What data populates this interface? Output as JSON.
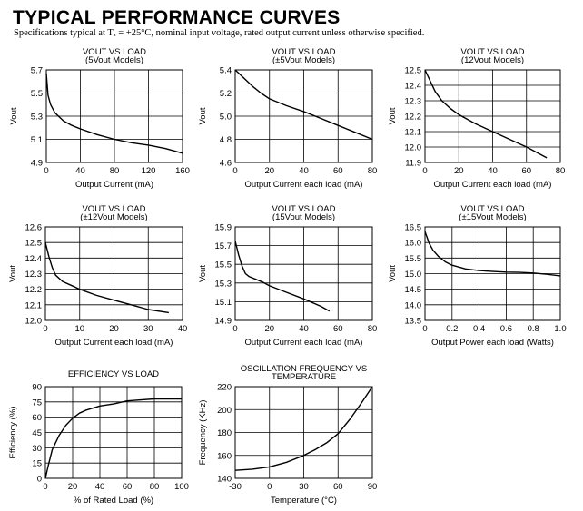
{
  "page": {
    "title": "TYPICAL PERFORMANCE CURVES",
    "subtitle": "Specifications typical at Tₐ = +25°C, nominal input voltage, rated output current unless otherwise specified."
  },
  "chart_data": [
    {
      "type": "line",
      "title": "VOUT VS LOAD",
      "subtitle": "(5Vout Models)",
      "xlabel": "Output Current (mA)",
      "ylabel": "Vout",
      "xlim": [
        0,
        160
      ],
      "ylim": [
        4.9,
        5.7
      ],
      "xticks": [
        0,
        40,
        80,
        120,
        160
      ],
      "yticks": [
        4.9,
        5.1,
        5.3,
        5.5,
        5.7
      ],
      "xtick_labels": [
        "0",
        "40",
        "80",
        "120",
        "160"
      ],
      "ytick_labels": [
        "4.9",
        "5.1",
        "5.3",
        "5.5",
        "5.7"
      ],
      "series": [
        {
          "name": "Vout",
          "x": [
            0,
            2,
            5,
            10,
            20,
            30,
            40,
            60,
            80,
            100,
            120,
            140,
            160
          ],
          "y": [
            5.67,
            5.48,
            5.4,
            5.33,
            5.26,
            5.22,
            5.19,
            5.14,
            5.1,
            5.07,
            5.05,
            5.02,
            4.98
          ]
        }
      ]
    },
    {
      "type": "line",
      "title": "VOUT VS LOAD",
      "subtitle": "(±5Vout Models)",
      "xlabel": "Output Current each load (mA)",
      "ylabel": "Vout",
      "xlim": [
        0,
        80
      ],
      "ylim": [
        4.6,
        5.4
      ],
      "xticks": [
        0,
        20,
        40,
        60,
        80
      ],
      "yticks": [
        4.6,
        4.8,
        5.0,
        5.2,
        5.4
      ],
      "xtick_labels": [
        "0",
        "20",
        "40",
        "60",
        "80"
      ],
      "ytick_labels": [
        "4.6",
        "4.8",
        "5.0",
        "5.2",
        "5.4"
      ],
      "series": [
        {
          "name": "Vout",
          "x": [
            0,
            5,
            10,
            15,
            20,
            30,
            40,
            50,
            60,
            70,
            80
          ],
          "y": [
            5.4,
            5.33,
            5.26,
            5.2,
            5.15,
            5.09,
            5.04,
            4.98,
            4.92,
            4.86,
            4.8
          ]
        }
      ]
    },
    {
      "type": "line",
      "title": "VOUT VS LOAD",
      "subtitle": "(12Vout Models)",
      "xlabel": "Output Current each load (mA)",
      "ylabel": "Vout",
      "xlim": [
        0,
        80
      ],
      "ylim": [
        11.9,
        12.5
      ],
      "xticks": [
        0,
        20,
        40,
        60,
        80
      ],
      "yticks": [
        11.9,
        12.0,
        12.1,
        12.2,
        12.3,
        12.4,
        12.5
      ],
      "xtick_labels": [
        "0",
        "20",
        "40",
        "60",
        "80"
      ],
      "ytick_labels": [
        "11.9",
        "12.0",
        "12.1",
        "12.2",
        "12.3",
        "12.4",
        "12.5"
      ],
      "series": [
        {
          "name": "Vout",
          "x": [
            0,
            3,
            6,
            10,
            15,
            20,
            30,
            40,
            50,
            60,
            72
          ],
          "y": [
            12.5,
            12.43,
            12.36,
            12.3,
            12.25,
            12.21,
            12.15,
            12.1,
            12.05,
            12.0,
            11.93
          ]
        }
      ]
    },
    {
      "type": "line",
      "title": "VOUT VS LOAD",
      "subtitle": "(±12Vout Models)",
      "xlabel": "Output Current each load (mA)",
      "ylabel": "Vout",
      "xlim": [
        0,
        40
      ],
      "ylim": [
        12.0,
        12.6
      ],
      "xticks": [
        0,
        10,
        20,
        30,
        40
      ],
      "yticks": [
        12.0,
        12.1,
        12.2,
        12.3,
        12.4,
        12.5,
        12.6
      ],
      "xtick_labels": [
        "0",
        "10",
        "20",
        "30",
        "40"
      ],
      "ytick_labels": [
        "12.0",
        "12.1",
        "12.2",
        "12.3",
        "12.4",
        "12.5",
        "12.6"
      ],
      "series": [
        {
          "name": "Vout",
          "x": [
            0,
            1,
            2,
            3,
            5,
            8,
            10,
            15,
            20,
            25,
            30,
            36
          ],
          "y": [
            12.5,
            12.41,
            12.34,
            12.29,
            12.25,
            12.22,
            12.2,
            12.16,
            12.13,
            12.1,
            12.07,
            12.05
          ]
        }
      ]
    },
    {
      "type": "line",
      "title": "VOUT VS LOAD",
      "subtitle": "(15Vout Models)",
      "xlabel": "Output Current each load (mA)",
      "ylabel": "Vout",
      "xlim": [
        0,
        80
      ],
      "ylim": [
        14.9,
        15.9
      ],
      "xticks": [
        0,
        20,
        40,
        60,
        80
      ],
      "yticks": [
        14.9,
        15.1,
        15.3,
        15.5,
        15.7,
        15.9
      ],
      "xtick_labels": [
        "0",
        "20",
        "40",
        "60",
        "80"
      ],
      "ytick_labels": [
        "14.9",
        "15.1",
        "15.3",
        "15.5",
        "15.7",
        "15.9"
      ],
      "series": [
        {
          "name": "Vout",
          "x": [
            0,
            2,
            4,
            6,
            8,
            12,
            16,
            20,
            30,
            40,
            50,
            55
          ],
          "y": [
            15.75,
            15.6,
            15.48,
            15.4,
            15.37,
            15.34,
            15.31,
            15.27,
            15.2,
            15.13,
            15.05,
            15.0
          ]
        }
      ]
    },
    {
      "type": "line",
      "title": "VOUT VS LOAD",
      "subtitle": "(±15Vout Models)",
      "xlabel": "Output Power each load (Watts)",
      "ylabel": "Vout",
      "xlim": [
        0,
        1.0
      ],
      "ylim": [
        13.5,
        16.5
      ],
      "xticks": [
        0,
        0.2,
        0.4,
        0.6,
        0.8,
        1.0
      ],
      "yticks": [
        13.5,
        14.0,
        14.5,
        15.0,
        15.5,
        16.0,
        16.5
      ],
      "xtick_labels": [
        "0",
        "0.2",
        "0.4",
        "0.6",
        "0.8",
        "1.0"
      ],
      "ytick_labels": [
        "13.5",
        "14.0",
        "14.5",
        "15.0",
        "15.5",
        "16.0",
        "16.5"
      ],
      "series": [
        {
          "name": "Vout",
          "x": [
            0,
            0.03,
            0.06,
            0.1,
            0.15,
            0.2,
            0.3,
            0.4,
            0.5,
            0.6,
            0.7,
            0.8,
            0.9,
            1.0
          ],
          "y": [
            16.35,
            15.98,
            15.75,
            15.55,
            15.38,
            15.27,
            15.15,
            15.1,
            15.07,
            15.05,
            15.04,
            15.02,
            14.98,
            14.93
          ]
        }
      ]
    },
    {
      "type": "line",
      "title": "EFFICIENCY VS LOAD",
      "subtitle": "",
      "xlabel": "% of Rated Load (%)",
      "ylabel": "Efficiency (%)",
      "xlim": [
        0,
        100
      ],
      "ylim": [
        0,
        90
      ],
      "xticks": [
        0,
        20,
        40,
        60,
        80,
        100
      ],
      "yticks": [
        0,
        15,
        30,
        45,
        60,
        75,
        90
      ],
      "xtick_labels": [
        "0",
        "20",
        "40",
        "60",
        "80",
        "100"
      ],
      "ytick_labels": [
        "0",
        "15",
        "30",
        "45",
        "60",
        "75",
        "90"
      ],
      "series": [
        {
          "name": "Efficiency",
          "x": [
            0,
            2,
            5,
            10,
            15,
            20,
            25,
            30,
            40,
            50,
            60,
            70,
            80,
            90,
            100
          ],
          "y": [
            0,
            12,
            28,
            42,
            52,
            59,
            64,
            67,
            71,
            73,
            76,
            77,
            78,
            78,
            78
          ]
        }
      ]
    },
    {
      "type": "line",
      "title": "OSCILLATION FREQUENCY VS",
      "subtitle": "TEMPERATURE",
      "xlabel": "Temperature (°C)",
      "ylabel": "Frequency (KHz)",
      "xlim": [
        -30,
        90
      ],
      "ylim": [
        140,
        220
      ],
      "xticks": [
        -30,
        0,
        30,
        60,
        90
      ],
      "yticks": [
        140,
        160,
        180,
        200,
        220
      ],
      "xtick_labels": [
        "-30",
        "0",
        "30",
        "60",
        "90"
      ],
      "ytick_labels": [
        "140",
        "160",
        "180",
        "200",
        "220"
      ],
      "series": [
        {
          "name": "Frequency",
          "x": [
            -30,
            -15,
            0,
            15,
            30,
            40,
            50,
            60,
            70,
            80,
            90
          ],
          "y": [
            147,
            148,
            150,
            154,
            160,
            165,
            171,
            179,
            191,
            205,
            220
          ]
        }
      ]
    }
  ]
}
